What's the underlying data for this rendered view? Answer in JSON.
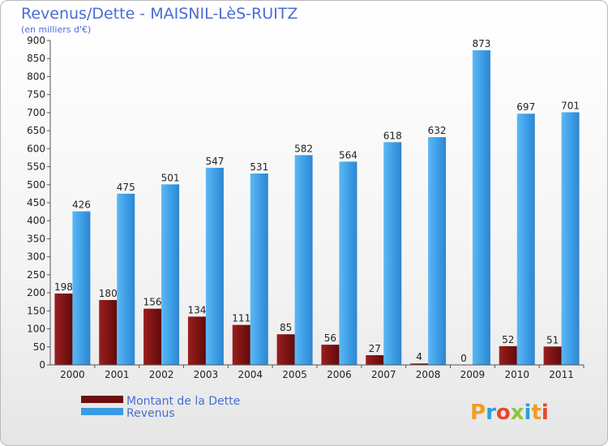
{
  "chart_data": {
    "type": "bar",
    "title": "Revenus/Dette - MAISNIL-LèS-RUITZ",
    "subtitle": "(en milliers d'€)",
    "categories": [
      "2000",
      "2001",
      "2002",
      "2003",
      "2004",
      "2005",
      "2006",
      "2007",
      "2008",
      "2009",
      "2010",
      "2011"
    ],
    "series": [
      {
        "name": "Montant de la Dette",
        "values": [
          198,
          180,
          156,
          134,
          111,
          85,
          56,
          27,
          4,
          0,
          52,
          51
        ],
        "color": "#8b1a1a"
      },
      {
        "name": "Revenus",
        "values": [
          426,
          475,
          501,
          547,
          531,
          582,
          564,
          618,
          632,
          873,
          697,
          701
        ],
        "color": "#4aa8ec"
      }
    ],
    "yticks": [
      0,
      50,
      100,
      150,
      200,
      250,
      300,
      350,
      400,
      450,
      500,
      550,
      600,
      650,
      700,
      750,
      800,
      850,
      900
    ],
    "ylim": [
      0,
      900
    ],
    "grid": false,
    "legend": "bottom-left"
  },
  "logo": {
    "text": "Proxiti"
  }
}
